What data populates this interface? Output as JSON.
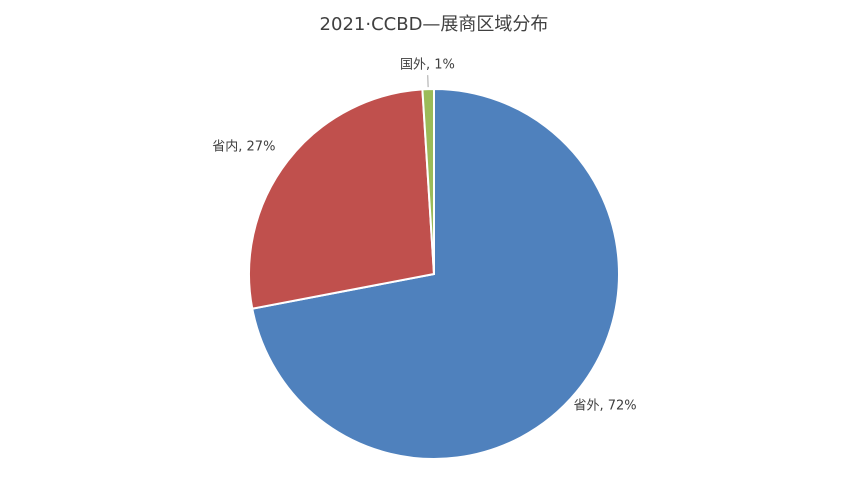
{
  "chart_data": {
    "type": "pie",
    "title": "2021·CCBD—展商区域分布",
    "values": [
      72,
      27,
      1
    ],
    "value_labels": [
      "省外, 72%",
      "省内, 27%",
      "国外, 1%"
    ],
    "colors": [
      "#4f81bd",
      "#c0504d",
      "#9bbb59"
    ]
  }
}
